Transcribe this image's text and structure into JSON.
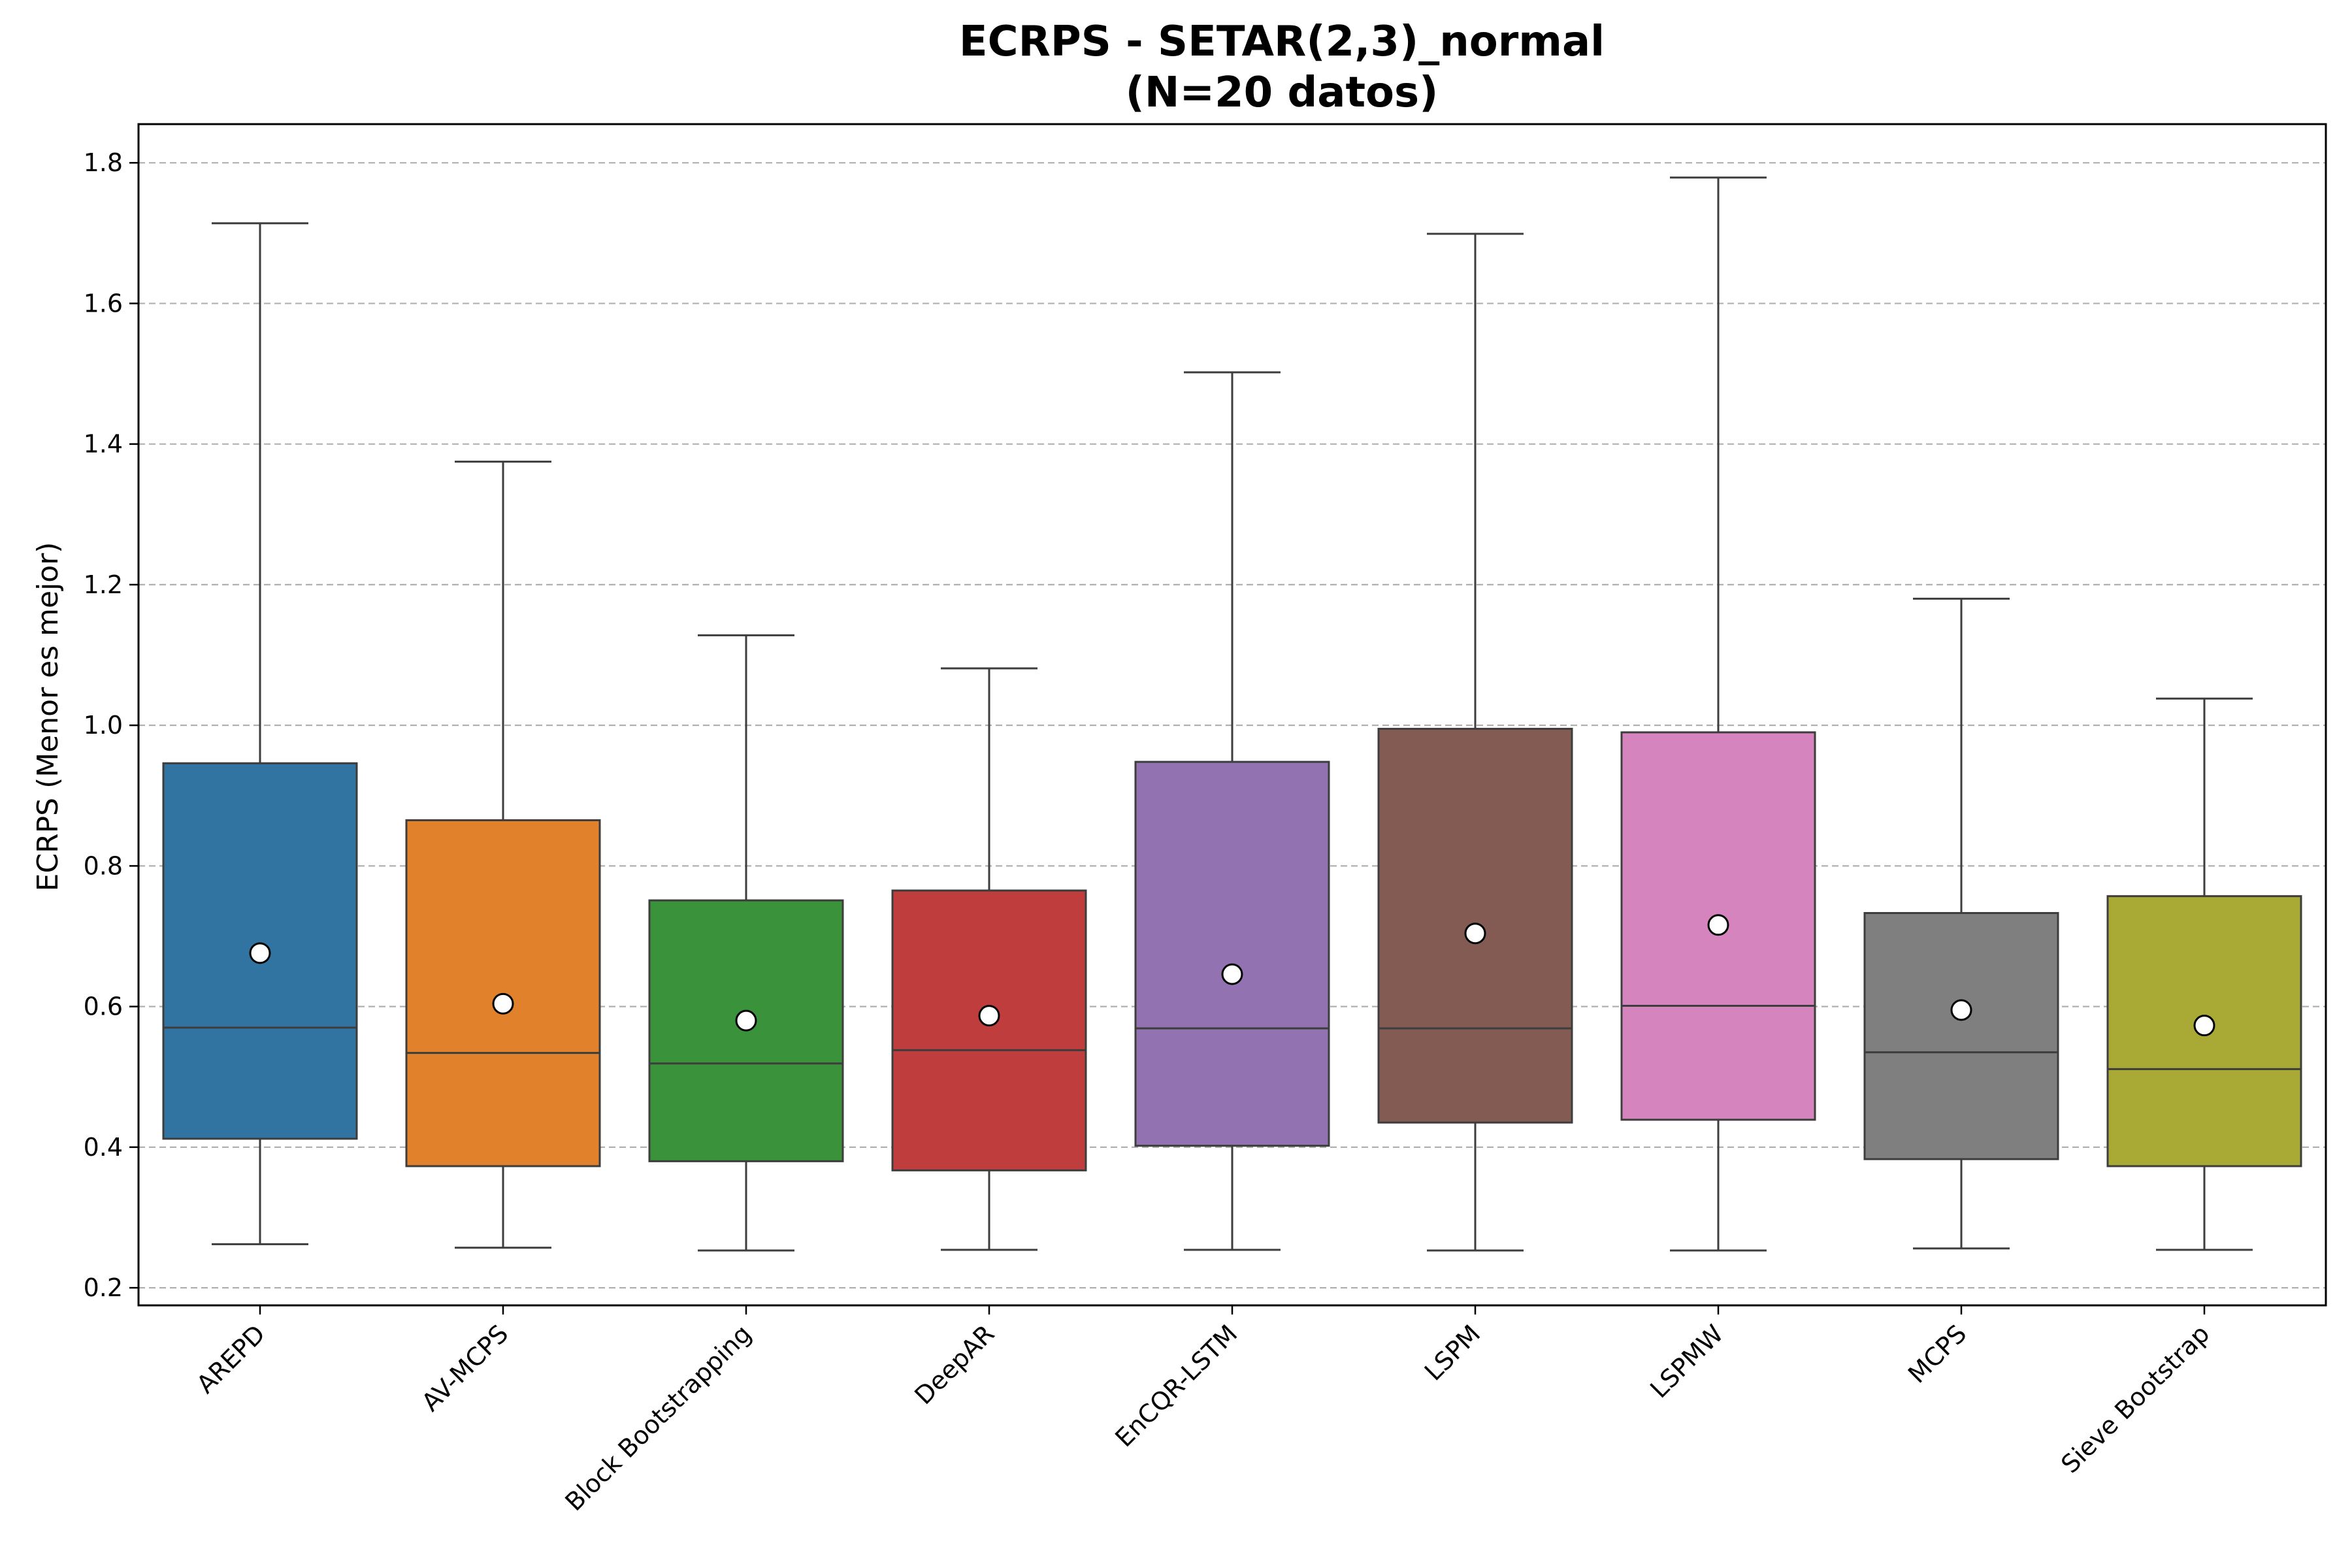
{
  "chart_data": {
    "type": "box",
    "title": "ECRPS - SETAR(2,3)_normal",
    "subtitle": "(N=20 datos)",
    "xlabel": "",
    "ylabel": "ECRPS (Menor es mejor)",
    "ylim": [
      0.175,
      1.855
    ],
    "yticks": [
      0.2,
      0.4,
      0.6,
      0.8,
      1.0,
      1.2,
      1.4,
      1.6,
      1.8
    ],
    "ytick_labels": [
      "0.2",
      "0.4",
      "0.6",
      "0.8",
      "1.0",
      "1.2",
      "1.4",
      "1.6",
      "1.8"
    ],
    "grid": "y-dashed",
    "mean_marker": "white-circle",
    "boxes": [
      {
        "label": "AREPD",
        "color": "#3274a1",
        "whisker_low": 0.262,
        "q1": 0.412,
        "median": 0.57,
        "q3": 0.946,
        "whisker_high": 1.714,
        "mean": 0.676
      },
      {
        "label": "AV-MCPS",
        "color": "#e1812c",
        "whisker_low": 0.257,
        "q1": 0.373,
        "median": 0.534,
        "q3": 0.865,
        "whisker_high": 1.375,
        "mean": 0.604
      },
      {
        "label": "Block Bootstrapping",
        "color": "#3a923a",
        "whisker_low": 0.253,
        "q1": 0.38,
        "median": 0.519,
        "q3": 0.751,
        "whisker_high": 1.128,
        "mean": 0.58
      },
      {
        "label": "DeepAR",
        "color": "#c03d3e",
        "whisker_low": 0.254,
        "q1": 0.367,
        "median": 0.538,
        "q3": 0.765,
        "whisker_high": 1.081,
        "mean": 0.587
      },
      {
        "label": "EnCQR-LSTM",
        "color": "#9372b2",
        "whisker_low": 0.254,
        "q1": 0.402,
        "median": 0.569,
        "q3": 0.948,
        "whisker_high": 1.502,
        "mean": 0.646
      },
      {
        "label": "LSPM",
        "color": "#845b53",
        "whisker_low": 0.253,
        "q1": 0.435,
        "median": 0.569,
        "q3": 0.995,
        "whisker_high": 1.699,
        "mean": 0.704
      },
      {
        "label": "LSPMW",
        "color": "#d684bd",
        "whisker_low": 0.253,
        "q1": 0.439,
        "median": 0.601,
        "q3": 0.99,
        "whisker_high": 1.779,
        "mean": 0.716
      },
      {
        "label": "MCPS",
        "color": "#7f7f7f",
        "whisker_low": 0.256,
        "q1": 0.383,
        "median": 0.535,
        "q3": 0.733,
        "whisker_high": 1.18,
        "mean": 0.595
      },
      {
        "label": "Sieve Bootstrap",
        "color": "#a9aa35",
        "whisker_low": 0.254,
        "q1": 0.373,
        "median": 0.511,
        "q3": 0.757,
        "whisker_high": 1.038,
        "mean": 0.573
      }
    ]
  }
}
